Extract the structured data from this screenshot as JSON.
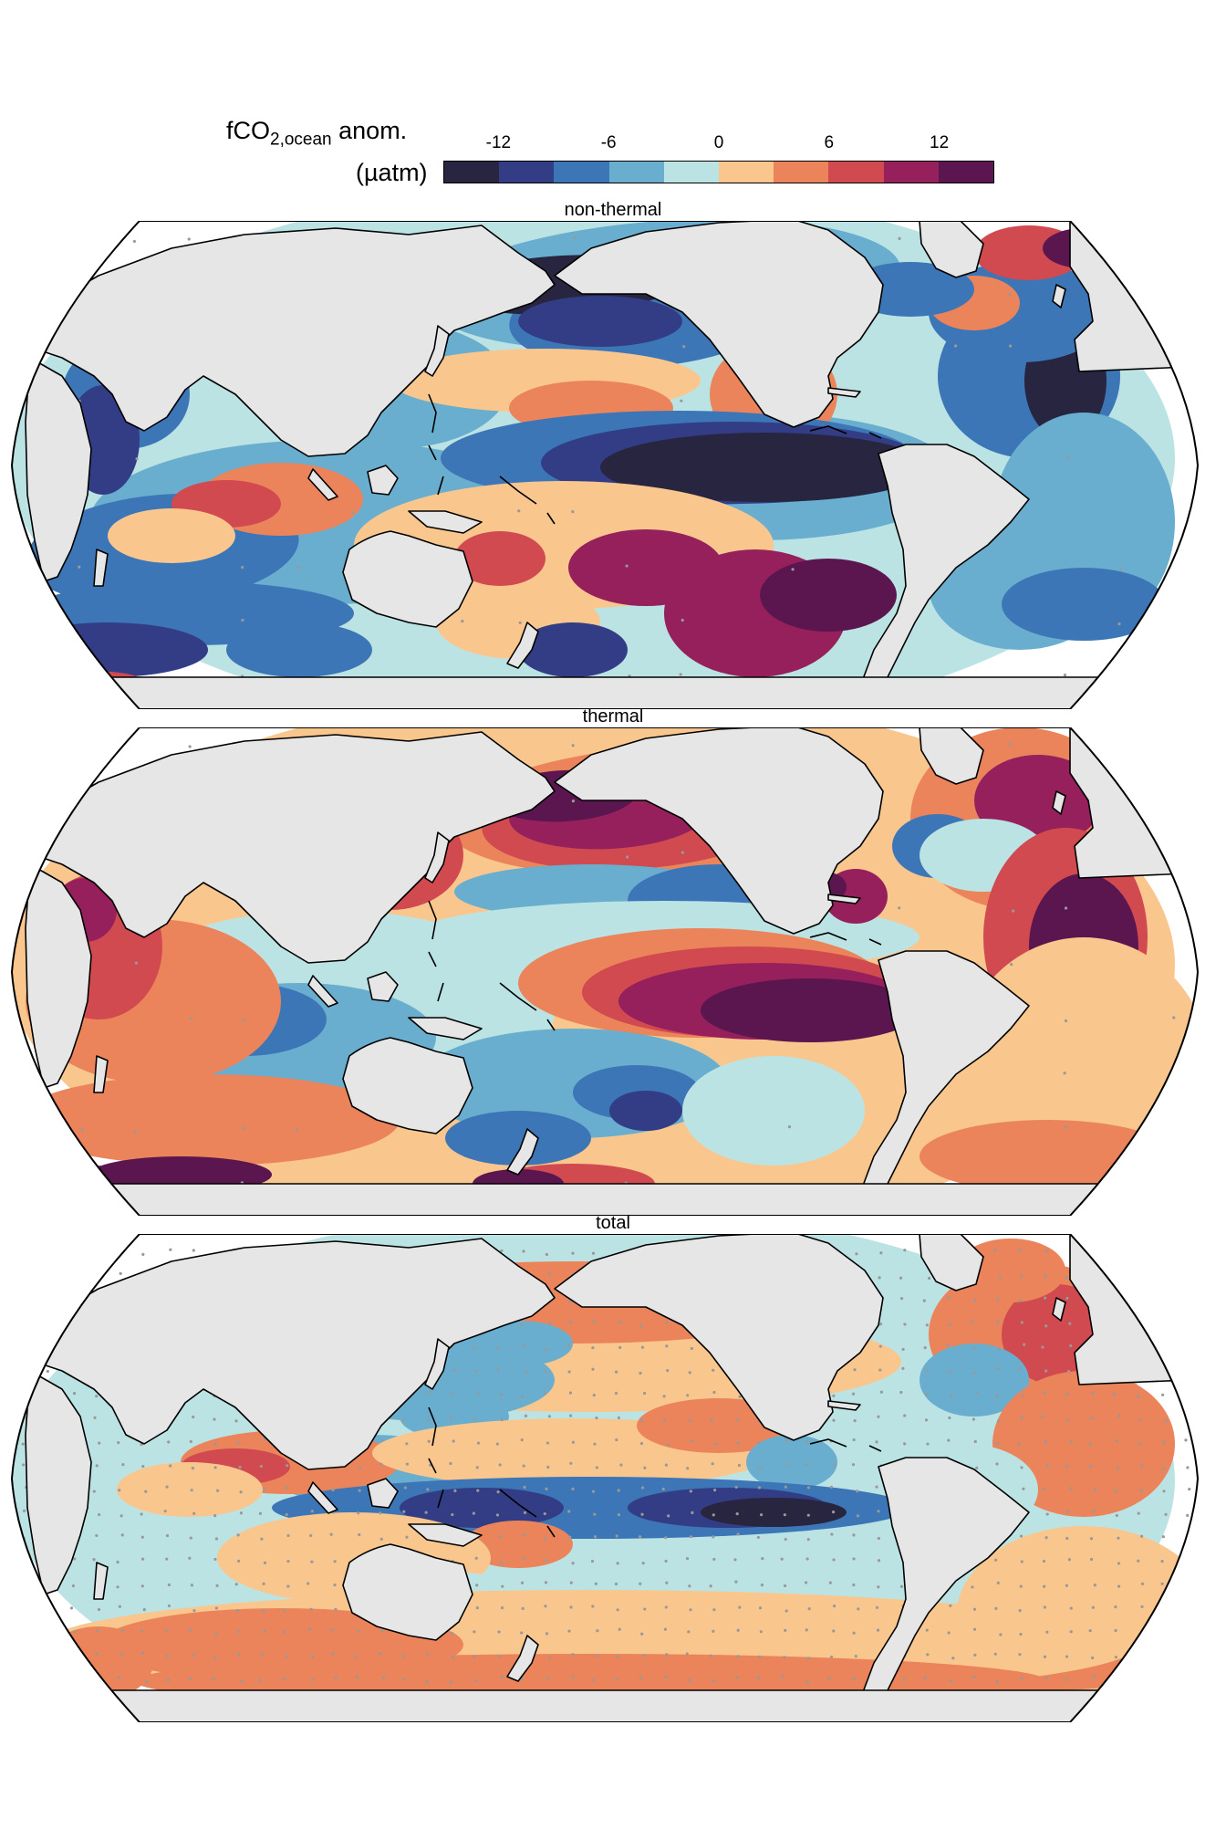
{
  "colorbar": {
    "label_main": "fCO",
    "label_sub": "2,ocean",
    "label_tail": " anom.",
    "units": "(µatm)",
    "ticks": [
      "-12",
      "-6",
      "0",
      "6",
      "12"
    ],
    "colors": [
      "#27253f",
      "#323d85",
      "#3d76b6",
      "#69aecf",
      "#bce3e4",
      "#f9c78e",
      "#eb845b",
      "#d04a50",
      "#96205c",
      "#5b1650"
    ]
  },
  "panels": [
    {
      "title": "non-thermal"
    },
    {
      "title": "thermal"
    },
    {
      "title": "total"
    }
  ],
  "style": {
    "land": "#e6e6e6",
    "coast": "#000000",
    "stipple": "#999999"
  }
}
